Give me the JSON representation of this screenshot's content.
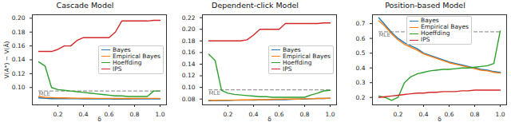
{
  "chart_data": [
    {
      "type": "line",
      "title": "Cascade Model",
      "xlabel": "δ",
      "ylabel": "V(A*) − V(Â)",
      "x": [
        0.05,
        0.1,
        0.15,
        0.2,
        0.25,
        0.3,
        0.35,
        0.4,
        0.45,
        0.5,
        0.55,
        0.6,
        0.65,
        0.7,
        0.75,
        0.8,
        0.85,
        0.9,
        0.95,
        1.0
      ],
      "xlim": [
        0.0,
        1.05
      ],
      "xticks": [
        0.2,
        0.4,
        0.6,
        0.8,
        {
          "value": 1,
          "label": "1.0"
        }
      ],
      "ylim": [
        0.075,
        0.205
      ],
      "yticks": [
        {
          "value": 0.1,
          "label": "0.10"
        },
        0.12,
        0.14,
        0.16,
        0.18,
        {
          "value": 0.2,
          "label": "0.20"
        }
      ],
      "grid": false,
      "legend": "center right",
      "series": [
        {
          "name": "Bayes",
          "color": "#1f77b4",
          "values": [
            0.085,
            0.0845,
            0.084,
            0.084,
            0.084,
            0.0838,
            0.0838,
            0.0836,
            0.0836,
            0.0835,
            0.0835,
            0.0835,
            0.0834,
            0.0834,
            0.0834,
            0.0835,
            0.0835,
            0.0835,
            0.0836,
            0.0836
          ]
        },
        {
          "name": "Empirical Bayes",
          "color": "#ff7f0e",
          "values": [
            0.087,
            0.086,
            0.0855,
            0.085,
            0.085,
            0.0848,
            0.0846,
            0.0845,
            0.0845,
            0.0844,
            0.0843,
            0.0843,
            0.0842,
            0.0842,
            0.0842,
            0.0842,
            0.0843,
            0.0843,
            0.0843,
            0.0844
          ]
        },
        {
          "name": "Hoeffding",
          "color": "#2ca02c",
          "values": [
            0.137,
            0.131,
            0.1,
            0.097,
            0.096,
            0.095,
            0.094,
            0.093,
            0.092,
            0.091,
            0.09,
            0.089,
            0.088,
            0.088,
            0.087,
            0.087,
            0.087,
            0.087,
            0.095,
            0.095
          ]
        },
        {
          "name": "IPS",
          "color": "#d62728",
          "values": [
            0.152,
            0.152,
            0.152,
            0.155,
            0.16,
            0.16,
            0.168,
            0.172,
            0.172,
            0.172,
            0.172,
            0.172,
            0.18,
            0.196,
            0.196,
            0.196,
            0.196,
            0.196,
            0.197,
            0.197
          ]
        }
      ],
      "reference": {
        "label": "MLE",
        "value": 0.095,
        "color": "#999999",
        "line_style": "dashed"
      }
    },
    {
      "type": "line",
      "title": "Dependent-click Model",
      "xlabel": "δ",
      "x": [
        0.05,
        0.1,
        0.15,
        0.2,
        0.25,
        0.3,
        0.35,
        0.4,
        0.45,
        0.5,
        0.55,
        0.6,
        0.65,
        0.7,
        0.75,
        0.8,
        0.85,
        0.9,
        0.95,
        1.0
      ],
      "xlim": [
        0.0,
        1.05
      ],
      "xticks": [
        0.2,
        0.4,
        0.6,
        0.8,
        {
          "value": 1,
          "label": "1.0"
        }
      ],
      "ylim": [
        0.07,
        0.225
      ],
      "yticks": [
        0.08,
        {
          "value": 0.1,
          "label": "0.10"
        },
        0.12,
        0.14,
        0.16,
        0.18,
        {
          "value": 0.2,
          "label": "0.20"
        },
        0.22
      ],
      "grid": false,
      "legend": "center right",
      "series": [
        {
          "name": "Bayes",
          "color": "#1f77b4",
          "values": [
            0.077,
            0.077,
            0.0775,
            0.0775,
            0.078,
            0.078,
            0.078,
            0.078,
            0.0785,
            0.0785,
            0.079,
            0.079,
            0.079,
            0.0795,
            0.08,
            0.08,
            0.0805,
            0.081,
            0.081,
            0.0815
          ]
        },
        {
          "name": "Empirical Bayes",
          "color": "#ff7f0e",
          "values": [
            0.078,
            0.0775,
            0.078,
            0.078,
            0.078,
            0.0785,
            0.0785,
            0.079,
            0.079,
            0.079,
            0.0795,
            0.0795,
            0.08,
            0.08,
            0.08,
            0.0805,
            0.0805,
            0.081,
            0.081,
            0.0815
          ]
        },
        {
          "name": "Hoeffding",
          "color": "#2ca02c",
          "values": [
            0.157,
            0.146,
            0.095,
            0.09,
            0.088,
            0.087,
            0.086,
            0.085,
            0.084,
            0.084,
            0.083,
            0.083,
            0.083,
            0.083,
            0.083,
            0.083,
            0.087,
            0.09,
            0.094,
            0.095
          ]
        },
        {
          "name": "IPS",
          "color": "#d62728",
          "values": [
            0.18,
            0.18,
            0.18,
            0.18,
            0.18,
            0.18,
            0.182,
            0.19,
            0.2,
            0.2,
            0.2,
            0.2,
            0.21,
            0.21,
            0.21,
            0.21,
            0.21,
            0.21,
            0.211,
            0.211
          ]
        }
      ],
      "reference": {
        "label": "MLE",
        "value": 0.096,
        "color": "#999999",
        "line_style": "dashed"
      }
    },
    {
      "type": "line",
      "title": "Position-based Model",
      "xlabel": "δ",
      "x": [
        0.05,
        0.1,
        0.15,
        0.2,
        0.25,
        0.3,
        0.35,
        0.4,
        0.45,
        0.5,
        0.55,
        0.6,
        0.65,
        0.7,
        0.75,
        0.8,
        0.85,
        0.9,
        0.95,
        1.0
      ],
      "xlim": [
        0.0,
        1.05
      ],
      "xticks": [
        0.2,
        0.4,
        0.6,
        0.8,
        {
          "value": 1,
          "label": "1.0"
        }
      ],
      "ylim": [
        0.15,
        0.76
      ],
      "yticks": [
        0.2,
        0.3,
        0.4,
        0.5,
        0.6,
        0.7
      ],
      "grid": false,
      "legend": "upper center",
      "series": [
        {
          "name": "Bayes",
          "color": "#1f77b4",
          "values": [
            0.74,
            0.69,
            0.64,
            0.6,
            0.57,
            0.55,
            0.53,
            0.5,
            0.485,
            0.47,
            0.455,
            0.44,
            0.43,
            0.42,
            0.41,
            0.4,
            0.39,
            0.385,
            0.375,
            0.37
          ]
        },
        {
          "name": "Empirical Bayes",
          "color": "#ff7f0e",
          "values": [
            0.72,
            0.68,
            0.63,
            0.59,
            0.56,
            0.54,
            0.52,
            0.495,
            0.48,
            0.465,
            0.45,
            0.435,
            0.425,
            0.415,
            0.405,
            0.395,
            0.385,
            0.38,
            0.37,
            0.365
          ]
        },
        {
          "name": "Hoeffding",
          "color": "#2ca02c",
          "values": [
            0.21,
            0.2,
            0.18,
            0.2,
            0.3,
            0.34,
            0.36,
            0.37,
            0.38,
            0.385,
            0.39,
            0.39,
            0.395,
            0.4,
            0.4,
            0.405,
            0.41,
            0.415,
            0.43,
            0.65
          ]
        },
        {
          "name": "IPS",
          "color": "#d62728",
          "values": [
            0.2,
            0.205,
            0.21,
            0.215,
            0.22,
            0.225,
            0.23,
            0.23,
            0.235,
            0.235,
            0.24,
            0.24,
            0.24,
            0.245,
            0.245,
            0.25,
            0.25,
            0.25,
            0.25,
            0.25
          ]
        }
      ],
      "reference": {
        "label": "MLE",
        "value": 0.645,
        "color": "#999999",
        "line_style": "dashed"
      }
    }
  ]
}
